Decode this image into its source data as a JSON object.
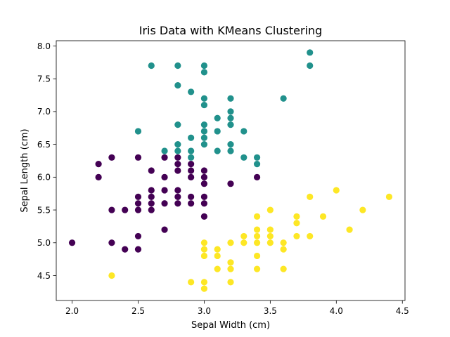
{
  "chart_data": {
    "type": "scatter",
    "title": "Iris Data with KMeans Clustering",
    "xlabel": "Sepal Width (cm)",
    "ylabel": "Sepal Length (cm)",
    "xlim": [
      1.88,
      4.52
    ],
    "ylim": [
      4.12,
      8.08
    ],
    "x_ticks": [
      "2.0",
      "2.5",
      "3.0",
      "3.5",
      "4.0",
      "4.5"
    ],
    "y_ticks": [
      "4.5",
      "5.0",
      "5.5",
      "6.0",
      "6.5",
      "7.0",
      "7.5",
      "8.0"
    ],
    "grid": false,
    "legend": "none",
    "series": [
      {
        "color": "#440154",
        "points": [
          [
            2.0,
            5.0
          ],
          [
            2.2,
            6.2
          ],
          [
            2.2,
            6.0
          ],
          [
            2.3,
            6.3
          ],
          [
            2.3,
            5.5
          ],
          [
            2.3,
            5.0
          ],
          [
            2.4,
            5.5
          ],
          [
            2.4,
            4.9
          ],
          [
            2.5,
            6.3
          ],
          [
            2.5,
            5.7
          ],
          [
            2.5,
            5.6
          ],
          [
            2.5,
            5.5
          ],
          [
            2.5,
            5.1
          ],
          [
            2.5,
            4.9
          ],
          [
            2.6,
            6.1
          ],
          [
            2.6,
            5.8
          ],
          [
            2.6,
            5.7
          ],
          [
            2.6,
            5.6
          ],
          [
            2.6,
            5.5
          ],
          [
            2.7,
            6.3
          ],
          [
            2.7,
            6.0
          ],
          [
            2.7,
            5.8
          ],
          [
            2.7,
            5.6
          ],
          [
            2.7,
            5.2
          ],
          [
            2.8,
            6.3
          ],
          [
            2.8,
            6.2
          ],
          [
            2.8,
            6.1
          ],
          [
            2.8,
            5.8
          ],
          [
            2.8,
            5.7
          ],
          [
            2.8,
            5.6
          ],
          [
            2.9,
            6.2
          ],
          [
            2.9,
            6.1
          ],
          [
            2.9,
            6.0
          ],
          [
            2.9,
            5.7
          ],
          [
            2.9,
            5.6
          ],
          [
            3.0,
            6.1
          ],
          [
            3.0,
            6.0
          ],
          [
            3.0,
            5.9
          ],
          [
            3.0,
            5.7
          ],
          [
            3.0,
            5.6
          ],
          [
            3.0,
            5.4
          ],
          [
            3.2,
            5.9
          ],
          [
            3.4,
            6.0
          ]
        ]
      },
      {
        "color": "#21918c",
        "points": [
          [
            2.5,
            6.7
          ],
          [
            2.6,
            7.7
          ],
          [
            2.7,
            6.4
          ],
          [
            2.8,
            7.7
          ],
          [
            2.8,
            7.4
          ],
          [
            2.8,
            6.8
          ],
          [
            2.8,
            6.5
          ],
          [
            2.8,
            6.4
          ],
          [
            2.9,
            7.3
          ],
          [
            2.9,
            6.6
          ],
          [
            2.9,
            6.4
          ],
          [
            2.9,
            6.3
          ],
          [
            3.0,
            7.7
          ],
          [
            3.0,
            7.6
          ],
          [
            3.0,
            7.2
          ],
          [
            3.0,
            7.1
          ],
          [
            3.0,
            6.8
          ],
          [
            3.0,
            6.7
          ],
          [
            3.0,
            6.6
          ],
          [
            3.0,
            6.5
          ],
          [
            3.1,
            6.9
          ],
          [
            3.1,
            6.7
          ],
          [
            3.1,
            6.4
          ],
          [
            3.2,
            7.2
          ],
          [
            3.2,
            7.0
          ],
          [
            3.2,
            6.9
          ],
          [
            3.2,
            6.8
          ],
          [
            3.2,
            6.5
          ],
          [
            3.2,
            6.4
          ],
          [
            3.3,
            6.7
          ],
          [
            3.3,
            6.3
          ],
          [
            3.4,
            6.3
          ],
          [
            3.4,
            6.2
          ],
          [
            3.6,
            7.2
          ],
          [
            3.8,
            7.9
          ],
          [
            3.8,
            7.7
          ]
        ]
      },
      {
        "color": "#fde725",
        "points": [
          [
            2.3,
            4.5
          ],
          [
            2.9,
            4.4
          ],
          [
            3.0,
            5.0
          ],
          [
            3.0,
            4.9
          ],
          [
            3.0,
            4.8
          ],
          [
            3.0,
            4.4
          ],
          [
            3.0,
            4.3
          ],
          [
            3.1,
            4.9
          ],
          [
            3.1,
            4.8
          ],
          [
            3.1,
            4.6
          ],
          [
            3.2,
            5.0
          ],
          [
            3.2,
            4.7
          ],
          [
            3.2,
            4.6
          ],
          [
            3.2,
            4.4
          ],
          [
            3.3,
            5.1
          ],
          [
            3.3,
            5.0
          ],
          [
            3.4,
            5.4
          ],
          [
            3.4,
            5.2
          ],
          [
            3.4,
            5.1
          ],
          [
            3.4,
            5.0
          ],
          [
            3.4,
            4.8
          ],
          [
            3.4,
            4.6
          ],
          [
            3.5,
            5.5
          ],
          [
            3.5,
            5.2
          ],
          [
            3.5,
            5.1
          ],
          [
            3.5,
            5.0
          ],
          [
            3.6,
            5.0
          ],
          [
            3.6,
            4.9
          ],
          [
            3.6,
            4.6
          ],
          [
            3.7,
            5.4
          ],
          [
            3.7,
            5.3
          ],
          [
            3.7,
            5.1
          ],
          [
            3.8,
            5.7
          ],
          [
            3.8,
            5.1
          ],
          [
            3.9,
            5.4
          ],
          [
            4.0,
            5.8
          ],
          [
            4.1,
            5.2
          ],
          [
            4.2,
            5.5
          ],
          [
            4.4,
            5.7
          ]
        ]
      }
    ]
  }
}
